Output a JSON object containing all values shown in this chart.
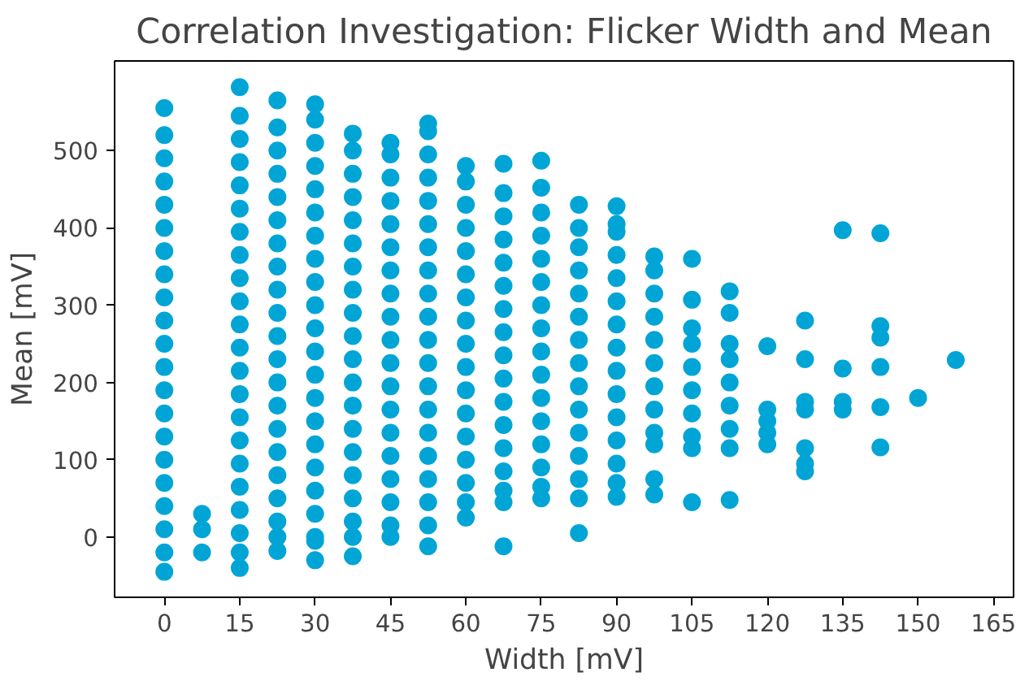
{
  "chart_data": {
    "type": "scatter",
    "title": "Correlation Investigation: Flicker Width and Mean",
    "xlabel": "Width [mV]",
    "ylabel": "Mean [mV]",
    "xlim": [
      -9.9,
      169
    ],
    "ylim": [
      -78,
      616
    ],
    "xticks": [
      0,
      15,
      30,
      45,
      60,
      75,
      90,
      105,
      120,
      135,
      150,
      165
    ],
    "yticks": [
      0,
      100,
      200,
      300,
      400,
      500
    ],
    "grid": false,
    "marker": "circle",
    "series": [
      {
        "color": "#00a5d6",
        "x": [
          0,
          0,
          0,
          0,
          0,
          0,
          0,
          0,
          0,
          0,
          0,
          0,
          0,
          0,
          0,
          0,
          0,
          0,
          0,
          0,
          0
        ],
        "values": [
          -45,
          -20,
          10,
          40,
          70,
          100,
          130,
          160,
          190,
          220,
          250,
          280,
          310,
          340,
          370,
          400,
          430,
          460,
          490,
          520,
          555
        ]
      },
      {
        "color": "#00a5d6",
        "x": [
          7.5,
          7.5,
          7.5
        ],
        "values": [
          30,
          10,
          -20
        ]
      },
      {
        "color": "#00a5d6",
        "x": [
          15,
          15,
          15,
          15,
          15,
          15,
          15,
          15,
          15,
          15,
          15,
          15,
          15,
          15,
          15,
          15,
          15,
          15,
          15,
          15,
          15,
          15
        ],
        "values": [
          582,
          545,
          515,
          485,
          455,
          425,
          395,
          365,
          335,
          305,
          275,
          245,
          215,
          185,
          155,
          125,
          95,
          65,
          35,
          5,
          -20,
          -40
        ]
      },
      {
        "color": "#00a5d6",
        "x": [
          22.5,
          22.5,
          22.5,
          22.5,
          22.5,
          22.5,
          22.5,
          22.5,
          22.5,
          22.5,
          22.5,
          22.5,
          22.5,
          22.5,
          22.5,
          22.5,
          22.5,
          22.5,
          22.5,
          22.5,
          22.5
        ],
        "values": [
          565,
          530,
          500,
          470,
          440,
          410,
          380,
          350,
          320,
          290,
          260,
          230,
          200,
          170,
          140,
          110,
          80,
          50,
          20,
          0,
          -18
        ]
      },
      {
        "color": "#00a5d6",
        "x": [
          30,
          30,
          30,
          30,
          30,
          30,
          30,
          30,
          30,
          30,
          30,
          30,
          30,
          30,
          30,
          30,
          30,
          30,
          30,
          30,
          30,
          30
        ],
        "values": [
          560,
          540,
          510,
          480,
          450,
          420,
          390,
          360,
          330,
          300,
          270,
          240,
          210,
          180,
          150,
          120,
          90,
          60,
          30,
          0,
          -5,
          -30
        ]
      },
      {
        "color": "#00a5d6",
        "x": [
          37.5,
          37.5,
          37.5,
          37.5,
          37.5,
          37.5,
          37.5,
          37.5,
          37.5,
          37.5,
          37.5,
          37.5,
          37.5,
          37.5,
          37.5,
          37.5,
          37.5,
          37.5,
          37.5,
          37.5
        ],
        "values": [
          522,
          500,
          470,
          440,
          410,
          380,
          350,
          320,
          290,
          260,
          230,
          200,
          170,
          140,
          110,
          80,
          50,
          20,
          0,
          -25
        ]
      },
      {
        "color": "#00a5d6",
        "x": [
          45,
          45,
          45,
          45,
          45,
          45,
          45,
          45,
          45,
          45,
          45,
          45,
          45,
          45,
          45,
          45,
          45,
          45,
          45
        ],
        "values": [
          510,
          495,
          465,
          435,
          405,
          375,
          345,
          315,
          285,
          255,
          225,
          195,
          165,
          135,
          105,
          75,
          45,
          15,
          0
        ]
      },
      {
        "color": "#00a5d6",
        "x": [
          52.5,
          52.5,
          52.5,
          52.5,
          52.5,
          52.5,
          52.5,
          52.5,
          52.5,
          52.5,
          52.5,
          52.5,
          52.5,
          52.5,
          52.5,
          52.5,
          52.5,
          52.5,
          52.5,
          52.5
        ],
        "values": [
          535,
          525,
          495,
          465,
          435,
          405,
          375,
          345,
          315,
          285,
          255,
          225,
          195,
          165,
          135,
          105,
          75,
          45,
          15,
          -12
        ]
      },
      {
        "color": "#00a5d6",
        "x": [
          60,
          60,
          60,
          60,
          60,
          60,
          60,
          60,
          60,
          60,
          60,
          60,
          60,
          60,
          60,
          60,
          60
        ],
        "values": [
          480,
          460,
          430,
          400,
          370,
          340,
          310,
          280,
          250,
          220,
          190,
          160,
          130,
          100,
          70,
          45,
          25
        ]
      },
      {
        "color": "#00a5d6",
        "x": [
          67.5,
          67.5,
          67.5,
          67.5,
          67.5,
          67.5,
          67.5,
          67.5,
          67.5,
          67.5,
          67.5,
          67.5,
          67.5,
          67.5,
          67.5,
          67.5,
          67.5
        ],
        "values": [
          483,
          445,
          415,
          385,
          355,
          325,
          295,
          265,
          235,
          205,
          175,
          145,
          115,
          85,
          60,
          45,
          -12
        ]
      },
      {
        "color": "#00a5d6",
        "x": [
          75,
          75,
          75,
          75,
          75,
          75,
          75,
          75,
          75,
          75,
          75,
          75,
          75,
          75,
          75,
          75
        ],
        "values": [
          487,
          452,
          420,
          390,
          360,
          330,
          300,
          270,
          240,
          210,
          180,
          150,
          120,
          90,
          65,
          50
        ]
      },
      {
        "color": "#00a5d6",
        "x": [
          82.5,
          82.5,
          82.5,
          82.5,
          82.5,
          82.5,
          82.5,
          82.5,
          82.5,
          82.5,
          82.5,
          82.5,
          82.5,
          82.5,
          82.5
        ],
        "values": [
          430,
          400,
          375,
          345,
          315,
          285,
          255,
          225,
          195,
          165,
          135,
          105,
          75,
          50,
          5
        ]
      },
      {
        "color": "#00a5d6",
        "x": [
          90,
          90,
          90,
          90,
          90,
          90,
          90,
          90,
          90,
          90,
          90,
          90,
          90,
          90,
          90
        ],
        "values": [
          428,
          405,
          395,
          365,
          335,
          305,
          275,
          245,
          215,
          185,
          155,
          125,
          95,
          70,
          52
        ]
      },
      {
        "color": "#00a5d6",
        "x": [
          97.5,
          97.5,
          97.5,
          97.5,
          97.5,
          97.5,
          97.5,
          97.5,
          97.5,
          97.5,
          97.5,
          97.5
        ],
        "values": [
          363,
          345,
          315,
          285,
          255,
          225,
          195,
          165,
          135,
          120,
          75,
          55
        ]
      },
      {
        "color": "#00a5d6",
        "x": [
          105,
          105,
          105,
          105,
          105,
          105,
          105,
          105,
          105,
          105
        ],
        "values": [
          360,
          307,
          270,
          250,
          220,
          190,
          160,
          130,
          115,
          45
        ]
      },
      {
        "color": "#00a5d6",
        "x": [
          112.5,
          112.5,
          112.5,
          112.5,
          112.5,
          112.5,
          112.5,
          112.5,
          112.5
        ],
        "values": [
          318,
          290,
          250,
          230,
          200,
          170,
          140,
          115,
          48
        ]
      },
      {
        "color": "#00a5d6",
        "x": [
          120,
          120,
          120,
          120,
          120
        ],
        "values": [
          247,
          165,
          150,
          135,
          120
        ]
      },
      {
        "color": "#00a5d6",
        "x": [
          127.5,
          127.5,
          127.5,
          127.5,
          127.5,
          127.5,
          127.5
        ],
        "values": [
          280,
          230,
          175,
          165,
          115,
          95,
          85
        ]
      },
      {
        "color": "#00a5d6",
        "x": [
          135,
          135,
          135,
          135
        ],
        "values": [
          397,
          218,
          175,
          165
        ]
      },
      {
        "color": "#00a5d6",
        "x": [
          142.5,
          142.5,
          142.5,
          142.5,
          142.5,
          142.5
        ],
        "values": [
          393,
          273,
          258,
          220,
          168,
          116
        ]
      },
      {
        "color": "#00a5d6",
        "x": [
          150
        ],
        "values": [
          180
        ]
      },
      {
        "color": "#00a5d6",
        "x": [
          157.5
        ],
        "values": [
          229
        ]
      }
    ]
  }
}
